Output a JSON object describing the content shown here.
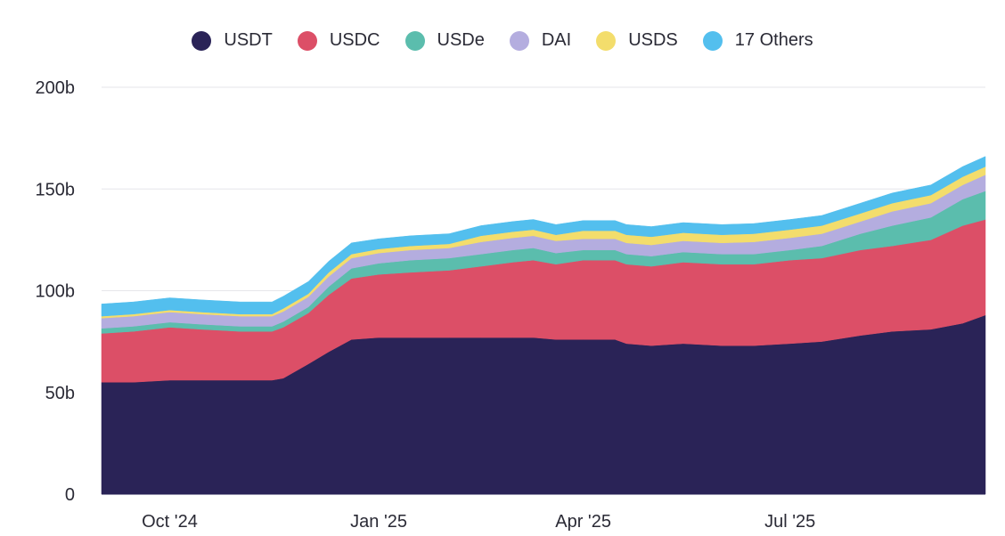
{
  "chart_data": {
    "type": "area",
    "stacked": true,
    "ylim": [
      0,
      200
    ],
    "yticks": [
      "0",
      "50b",
      "100b",
      "150b",
      "200b"
    ],
    "ytick_values": [
      0,
      50,
      100,
      150,
      200
    ],
    "xtick_labels": [
      "Oct '24",
      "Jan '25",
      "Apr '25",
      "Jul '25"
    ],
    "xtick_dates": [
      "2024-10-01",
      "2025-01-01",
      "2025-04-01",
      "2025-07-01"
    ],
    "xlim": [
      "2024-09-01",
      "2025-09-25"
    ],
    "grid": "horizontal",
    "legend_position": "top",
    "x": [
      "2024-09-01",
      "2024-09-15",
      "2024-10-01",
      "2024-10-15",
      "2024-11-01",
      "2024-11-15",
      "2024-11-20",
      "2024-12-01",
      "2024-12-10",
      "2024-12-20",
      "2025-01-01",
      "2025-01-15",
      "2025-02-01",
      "2025-02-15",
      "2025-03-01",
      "2025-03-10",
      "2025-03-20",
      "2025-04-01",
      "2025-04-15",
      "2025-04-20",
      "2025-05-01",
      "2025-05-15",
      "2025-06-01",
      "2025-06-15",
      "2025-07-01",
      "2025-07-15",
      "2025-08-01",
      "2025-08-15",
      "2025-09-01",
      "2025-09-15",
      "2025-09-25"
    ],
    "series": [
      {
        "name": "USDT",
        "color": "#2a2357",
        "values": [
          55,
          55,
          56,
          56,
          56,
          56,
          57,
          64,
          70,
          76,
          77,
          77,
          77,
          77,
          77,
          77,
          76,
          76,
          76,
          74,
          73,
          74,
          73,
          73,
          74,
          75,
          78,
          80,
          81,
          84,
          88
        ]
      },
      {
        "name": "USDC",
        "color": "#dc4f67",
        "values": [
          24,
          25,
          26,
          25,
          24,
          24,
          25,
          25,
          28,
          30,
          31,
          32,
          33,
          35,
          37,
          38,
          37,
          39,
          39,
          39,
          39,
          40,
          40,
          40,
          41,
          41,
          42,
          42,
          44,
          48,
          47
        ]
      },
      {
        "name": "USDe",
        "color": "#5bbdad",
        "values": [
          2.5,
          2.5,
          2.5,
          2.5,
          2.5,
          2.5,
          2.8,
          3,
          4,
          5,
          5.5,
          6,
          6,
          6,
          6,
          6,
          5.5,
          5,
          5,
          5,
          5,
          5,
          5,
          5,
          5,
          6,
          8,
          10,
          11,
          13,
          14
        ]
      },
      {
        "name": "DAI",
        "color": "#b4addf",
        "values": [
          5,
          5,
          5,
          5,
          5,
          5,
          5,
          5,
          5,
          5,
          5,
          5,
          5,
          6,
          6,
          6,
          6,
          5.5,
          5.5,
          5.5,
          5.5,
          5.5,
          5.5,
          6,
          6,
          6,
          6,
          7,
          7,
          7,
          8
        ]
      },
      {
        "name": "USDS",
        "color": "#f3dd6c",
        "values": [
          1,
          1,
          1,
          1,
          1,
          1,
          1.5,
          1.5,
          2,
          2,
          2,
          2,
          2,
          3,
          3,
          3,
          3,
          4,
          4,
          4,
          4,
          4,
          4,
          4,
          4,
          4,
          4,
          4,
          4,
          4,
          4
        ]
      },
      {
        "name": "17 Others",
        "color": "#53bfee",
        "values": [
          6,
          6,
          6,
          6,
          6,
          6,
          6,
          6,
          5.5,
          5.5,
          5,
          5,
          5,
          5,
          5,
          5,
          5,
          5,
          5,
          5,
          5,
          5,
          5,
          5,
          5,
          5,
          5,
          5,
          5,
          5,
          5
        ]
      }
    ]
  }
}
